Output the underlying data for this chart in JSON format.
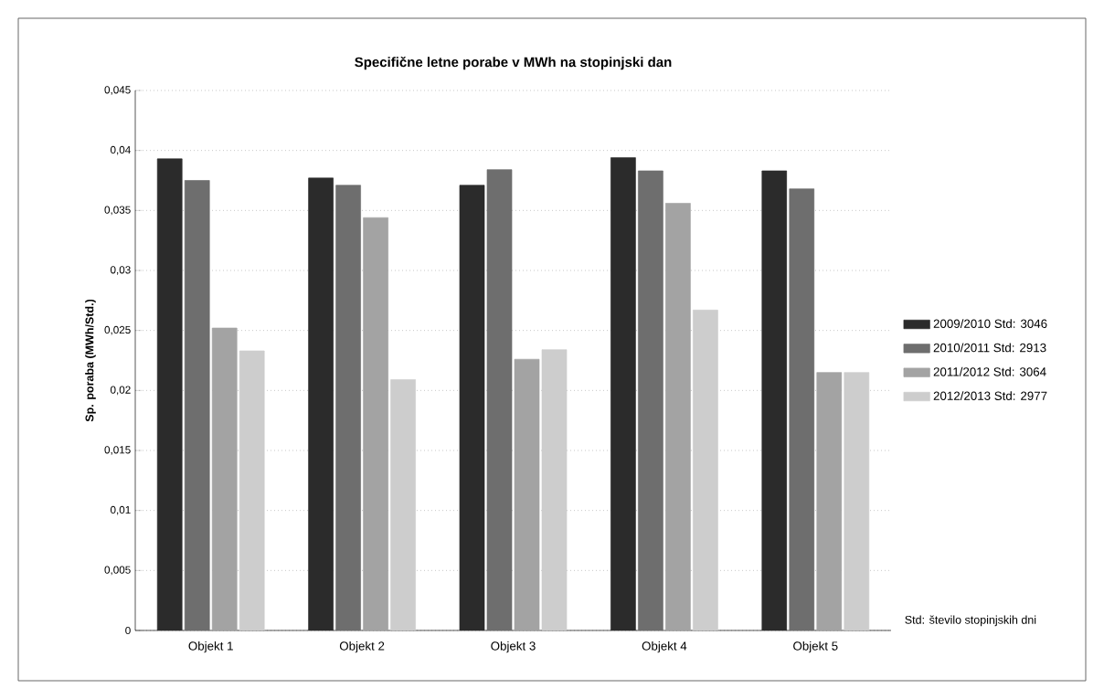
{
  "chart_data": {
    "type": "bar",
    "title": "Specifične letne porabe v MWh na stopinjski dan",
    "ylabel": "Sp. poraba (MWh/Std.)",
    "categories": [
      "Objekt 1",
      "Objekt 2",
      "Objekt 3",
      "Objekt 4",
      "Objekt 5"
    ],
    "series": [
      {
        "name": "2009/2010  Std: 3046",
        "color": "#2b2b2b",
        "values": [
          0.0393,
          0.0377,
          0.0371,
          0.0394,
          0.0383
        ]
      },
      {
        "name": "2010/2011  Std: 2913",
        "color": "#6e6e6e",
        "values": [
          0.0375,
          0.0371,
          0.0384,
          0.0383,
          0.0368
        ]
      },
      {
        "name": "2011/2012  Std: 3064",
        "color": "#a3a3a3",
        "values": [
          0.0252,
          0.0344,
          0.0226,
          0.0356,
          0.0215
        ]
      },
      {
        "name": "2012/2013  Std: 2977",
        "color": "#cdcdcd",
        "values": [
          0.0233,
          0.0209,
          0.0234,
          0.0267,
          0.0215
        ]
      }
    ],
    "ylim": [
      0,
      0.045
    ],
    "yticks": [
      0,
      {
        "value": 0.005,
        "label": "0,005"
      },
      {
        "value": 0.01,
        "label": "0,01"
      },
      {
        "value": 0.015,
        "label": "0,015"
      },
      {
        "value": 0.02,
        "label": "0,02"
      },
      {
        "value": 0.025,
        "label": "0,025"
      },
      {
        "value": 0.03,
        "label": "0,03"
      },
      {
        "value": 0.035,
        "label": "0,035"
      },
      {
        "value": 0.04,
        "label": "0,04"
      },
      {
        "value": 0.045,
        "label": "0,045"
      }
    ],
    "grid": "y",
    "legend": "right",
    "annotations": [
      "Std: število stopinjskih dni"
    ]
  }
}
